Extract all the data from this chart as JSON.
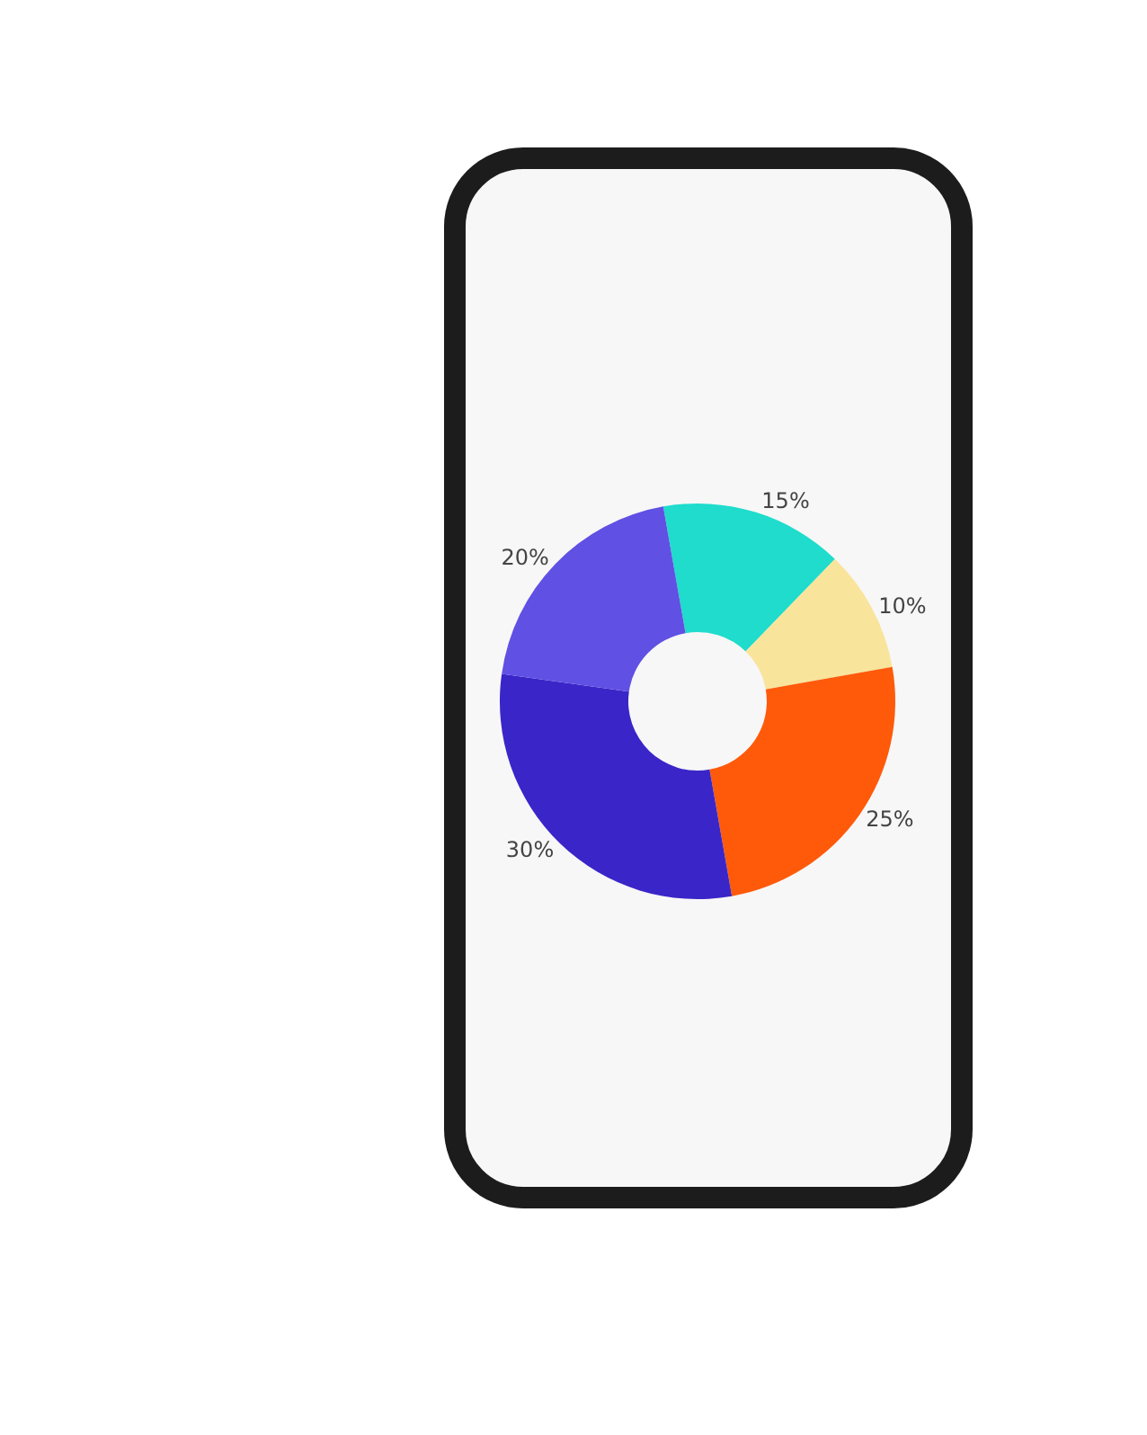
{
  "chart_data": {
    "type": "donut",
    "categories": [
      null,
      null,
      null,
      null,
      null
    ],
    "values": [
      15,
      10,
      25,
      30,
      20
    ],
    "value_labels": [
      "15%",
      "10%",
      "25%",
      "30%",
      "20%"
    ],
    "colors": [
      "#1fdccc",
      "#f9e49b",
      "#ff5a0a",
      "#3a25c8",
      "#6050e4"
    ],
    "legend": false
  }
}
